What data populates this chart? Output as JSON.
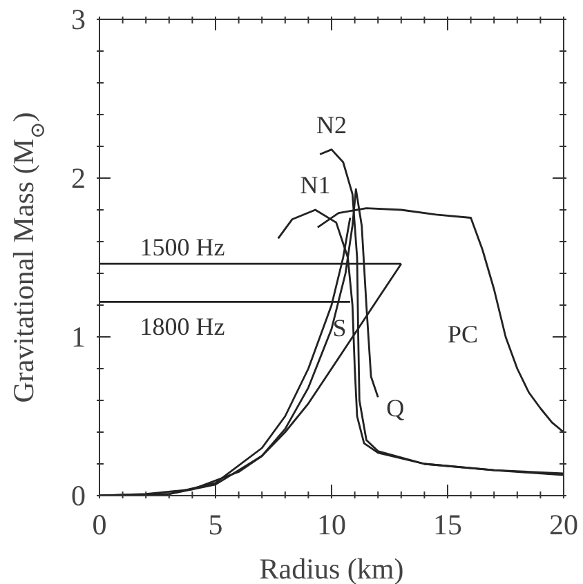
{
  "chart_data": {
    "type": "line",
    "xlabel": "Radius (km)",
    "ylabel": "Gravitational Mass (M$_{⊙}$)",
    "xlim": [
      0,
      20
    ],
    "ylim": [
      0,
      3
    ],
    "xticks": [
      0,
      {
        "value": 1,
        "label": null
      },
      {
        "value": 2,
        "label": null
      },
      {
        "value": 3,
        "label": null
      },
      {
        "value": 4,
        "label": null
      },
      5,
      {
        "value": 6,
        "label": null
      },
      {
        "value": 7,
        "label": null
      },
      {
        "value": 8,
        "label": null
      },
      {
        "value": 9,
        "label": null
      },
      10,
      {
        "value": 11,
        "label": null
      },
      {
        "value": 12,
        "label": null
      },
      {
        "value": 13,
        "label": null
      },
      {
        "value": 14,
        "label": null
      },
      15,
      {
        "value": 16,
        "label": null
      },
      {
        "value": 17,
        "label": null
      },
      {
        "value": 18,
        "label": null
      },
      {
        "value": 19,
        "label": null
      },
      20
    ],
    "yticks": [
      0,
      {
        "value": 0.2,
        "label": null
      },
      {
        "value": 0.4,
        "label": null
      },
      {
        "value": 0.6,
        "label": null
      },
      {
        "value": 0.8,
        "label": null
      },
      1,
      {
        "value": 1.2,
        "label": null
      },
      {
        "value": 1.4,
        "label": null
      },
      {
        "value": 1.6,
        "label": null
      },
      {
        "value": 1.8,
        "label": null
      },
      2,
      {
        "value": 2.2,
        "label": null
      },
      {
        "value": 2.4,
        "label": null
      },
      {
        "value": 2.6,
        "label": null
      },
      {
        "value": 2.8,
        "label": null
      },
      3
    ],
    "marker": "none",
    "line_style": "solid",
    "series": [
      {
        "name": "N1",
        "color": "#222222",
        "x": [
          7.7,
          8.3,
          9.3,
          10.2,
          10.7,
          10.9,
          11,
          11.1,
          11.4,
          12,
          14,
          17,
          20
        ],
        "values": [
          1.62,
          1.74,
          1.8,
          1.72,
          1.5,
          1.2,
          0.8,
          0.5,
          0.33,
          0.27,
          0.2,
          0.16,
          0.14
        ]
      },
      {
        "name": "N2",
        "color": "#222222",
        "x": [
          9.5,
          10,
          10.5,
          10.9,
          11.1,
          11.15,
          11.2,
          11.5,
          12,
          14,
          17,
          20
        ],
        "values": [
          2.15,
          2.18,
          2.1,
          1.9,
          1.5,
          1,
          0.6,
          0.35,
          0.28,
          0.2,
          0.16,
          0.13
        ]
      },
      {
        "name": "PC",
        "color": "#222222",
        "x": [
          9.4,
          10.3,
          11.5,
          13,
          14.5,
          16,
          16.5,
          17,
          17.5,
          18,
          18.5,
          19,
          19.5,
          20
        ],
        "values": [
          1.69,
          1.78,
          1.81,
          1.8,
          1.77,
          1.75,
          1.55,
          1.3,
          1,
          0.8,
          0.65,
          0.55,
          0.46,
          0.4
        ]
      },
      {
        "name": "Q",
        "color": "#222222",
        "x": [
          0,
          3,
          5,
          7,
          8,
          9,
          10,
          10.6,
          10.9,
          11.05,
          11.3,
          11.5,
          11.7,
          12
        ],
        "values": [
          0,
          0.01,
          0.07,
          0.25,
          0.42,
          0.68,
          1.05,
          1.4,
          1.7,
          1.93,
          1.7,
          1.2,
          0.75,
          0.62
        ]
      },
      {
        "name": "S",
        "color": "#222222",
        "x": [
          0,
          2,
          4,
          6,
          7,
          8,
          9,
          10,
          11,
          12,
          13
        ],
        "values": [
          0,
          0.01,
          0.04,
          0.15,
          0.25,
          0.4,
          0.58,
          0.8,
          1.02,
          1.24,
          1.46
        ]
      },
      {
        "color": "#222222",
        "x": [
          0,
          3,
          5,
          7,
          8,
          9,
          10,
          10.5,
          10.8
        ],
        "values": [
          0,
          0.01,
          0.08,
          0.3,
          0.5,
          0.8,
          1.2,
          1.5,
          1.75
        ]
      },
      {
        "name": "1500 Hz",
        "color": "#222222",
        "x": [
          0,
          13
        ],
        "values": [
          1.46,
          1.46
        ]
      },
      {
        "name": "1800 Hz",
        "color": "#222222",
        "x": [
          0,
          10.8
        ],
        "values": [
          1.22,
          1.22
        ]
      }
    ]
  }
}
